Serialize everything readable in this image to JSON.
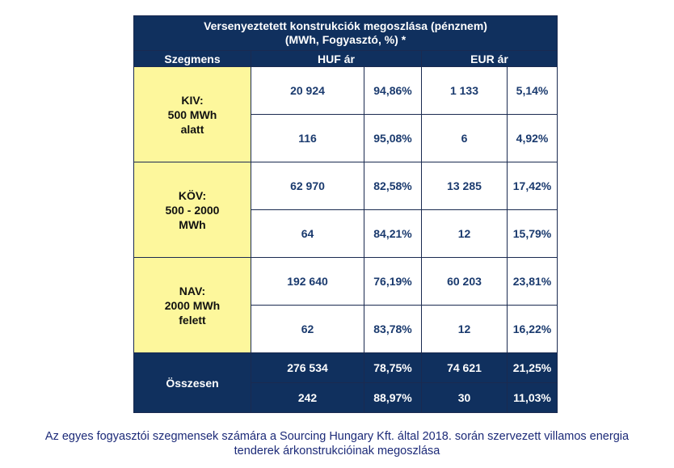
{
  "table": {
    "title_line1": "Versenyeztetett konstrukciók megoszlása (pénznem)",
    "title_line2": "(MWh, Fogyasztó, %) *",
    "col_segment": "Szegmens",
    "col_huf": "HUF ár",
    "col_eur": "EUR ár",
    "segments": [
      {
        "line1": "KIV:",
        "line2": "500 MWh",
        "line3": "alatt",
        "rows": [
          {
            "huf": "20 924",
            "huf_pct": "94,86%",
            "eur": "1 133",
            "eur_pct": "5,14%"
          },
          {
            "huf": "116",
            "huf_pct": "95,08%",
            "eur": "6",
            "eur_pct": "4,92%"
          }
        ]
      },
      {
        "line1": "KÖV:",
        "line2": "500 - 2000",
        "line3": "MWh",
        "rows": [
          {
            "huf": "62 970",
            "huf_pct": "82,58%",
            "eur": "13 285",
            "eur_pct": "17,42%"
          },
          {
            "huf": "64",
            "huf_pct": "84,21%",
            "eur": "12",
            "eur_pct": "15,79%"
          }
        ]
      },
      {
        "line1": "NAV:",
        "line2": "2000 MWh",
        "line3": "felett",
        "rows": [
          {
            "huf": "192 640",
            "huf_pct": "76,19%",
            "eur": "60 203",
            "eur_pct": "23,81%"
          },
          {
            "huf": "62",
            "huf_pct": "83,78%",
            "eur": "12",
            "eur_pct": "16,22%"
          }
        ]
      }
    ],
    "total": {
      "label": "Összesen",
      "rows": [
        {
          "huf": "276 534",
          "huf_pct": "78,75%",
          "eur": "74 621",
          "eur_pct": "21,25%"
        },
        {
          "huf": "242",
          "huf_pct": "88,97%",
          "eur": "30",
          "eur_pct": "11,03%"
        }
      ]
    }
  },
  "caption": {
    "line1": "Az egyes fogyasztói szegmensek számára a Sourcing Hungary Kft. által 2018. során szervezett villamos energia",
    "line2": "tenderek árkonstrukcióinak megoszlása"
  },
  "colors": {
    "header_bg": "#10305e",
    "segment_bg": "#fdf79c",
    "number_text": "#1a3a6e",
    "caption_text": "#1c2a78"
  }
}
